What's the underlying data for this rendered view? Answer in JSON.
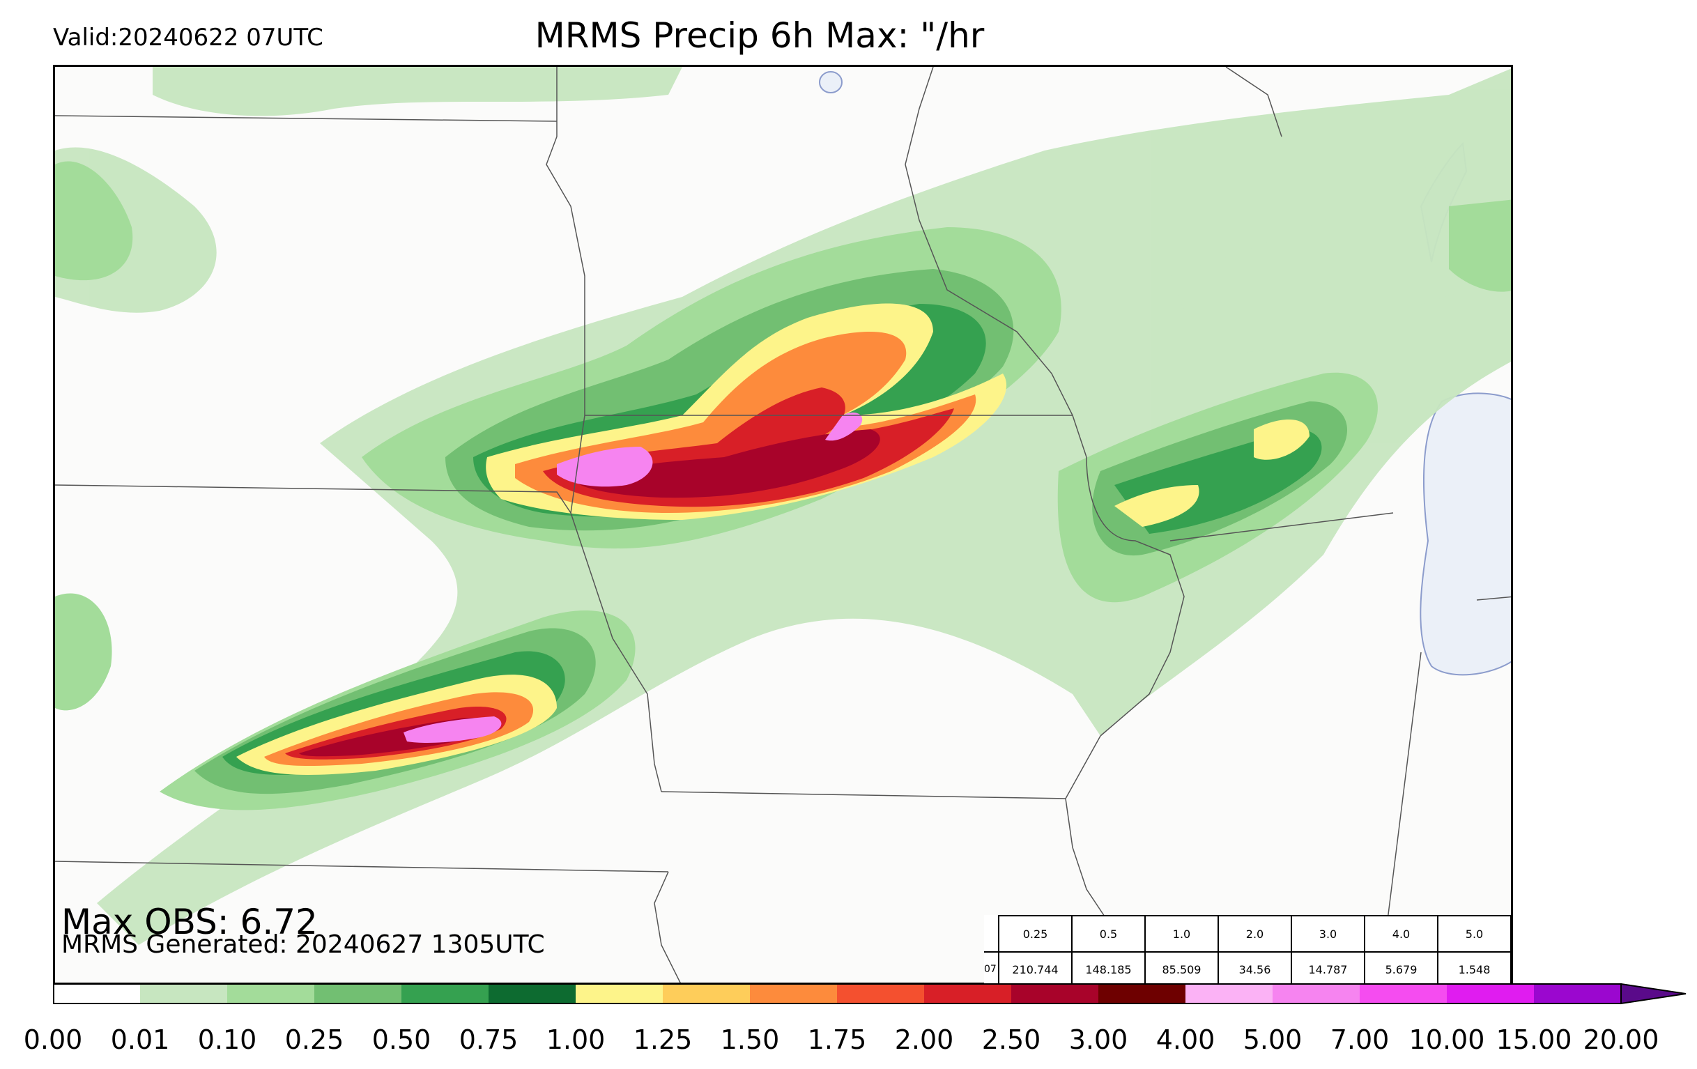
{
  "header": {
    "valid": "Valid:20240622 07UTC",
    "title": "MRMS Precip 6h Max: \"/hr"
  },
  "footer": {
    "max_obs": "Max OBS: 6.72",
    "generated": "MRMS Generated: 20240627 1305UTC"
  },
  "stats_table": {
    "row_label": "07",
    "thresholds": [
      "0.25",
      "0.5",
      "1.0",
      "2.0",
      "3.0",
      "4.0",
      "5.0"
    ],
    "values": [
      "210.744",
      "148.185",
      "85.509",
      "34.56",
      "14.787",
      "5.679",
      "1.548"
    ]
  },
  "legend": {
    "ticks": [
      "0.00",
      "0.01",
      "0.10",
      "0.25",
      "0.50",
      "0.75",
      "1.00",
      "1.25",
      "1.50",
      "1.75",
      "2.00",
      "2.50",
      "3.00",
      "4.00",
      "5.00",
      "7.00",
      "10.00",
      "15.00",
      "20.00"
    ],
    "colors": [
      "#ffffff",
      "#c7e6c0",
      "#a3dc9a",
      "#72bf72",
      "#35a150",
      "#0d6b30",
      "#fdf48a",
      "#fecd5a",
      "#fd8b3c",
      "#f4502f",
      "#d81f27",
      "#a8032a",
      "#6e0000",
      "#fbb2f5",
      "#f684f0",
      "#f54cf0",
      "#e01cf0",
      "#9b07cf"
    ],
    "extend_color": "#5a0a8a"
  },
  "map": {
    "lake_color": "#ebf0f8",
    "border_color": "#555555"
  }
}
